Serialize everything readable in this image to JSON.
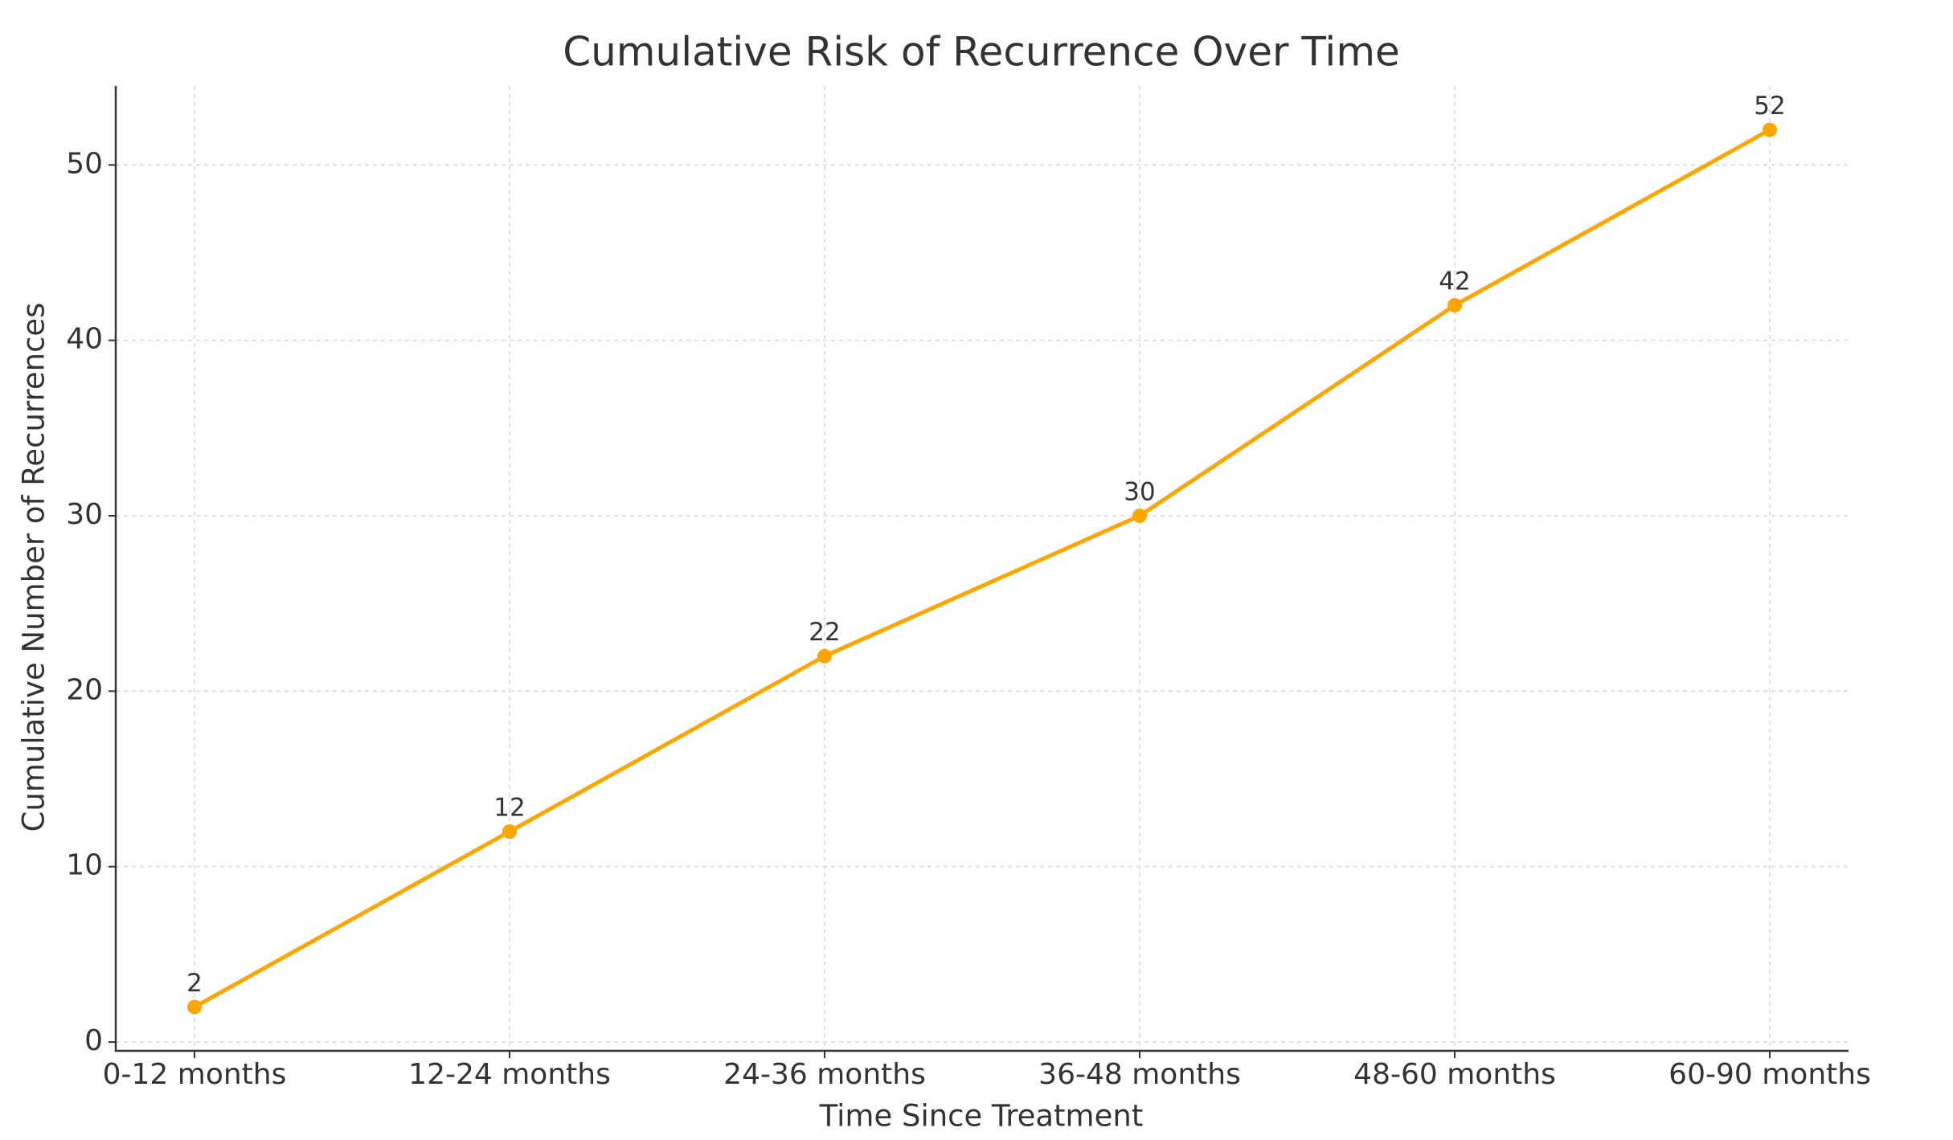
{
  "chart_data": {
    "type": "line",
    "title": "Cumulative Risk of Recurrence Over Time",
    "x_label": "Time Since Treatment",
    "y_label": "Cumulative Number of Recurrences",
    "categories": [
      "0-12 months",
      "12-24 months",
      "24-36 months",
      "36-48 months",
      "48-60 months",
      "60-90 months"
    ],
    "values": [
      2,
      12,
      22,
      30,
      42,
      52
    ],
    "color": "#ffa500",
    "ylim": [
      -0.5,
      54.5
    ],
    "yticks": [
      0,
      10,
      20,
      30,
      40,
      50
    ],
    "grid": true
  }
}
